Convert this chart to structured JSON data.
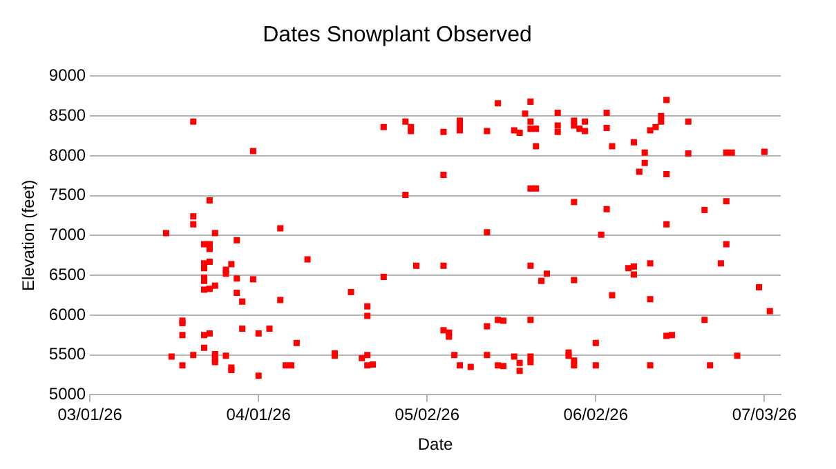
{
  "chart_data": {
    "type": "scatter",
    "title": "Dates Snowplant Observed",
    "xlabel": "Date",
    "ylabel": "Elevation (feet)",
    "xlim": [
      "2026-03-01",
      "2026-07-06"
    ],
    "xticks": [
      {
        "value": "2026-03-01",
        "label": "03/01/26"
      },
      {
        "value": "2026-04-01",
        "label": "04/01/26"
      },
      {
        "value": "2026-05-02",
        "label": "05/02/26"
      },
      {
        "value": "2026-06-02",
        "label": "06/02/26"
      },
      {
        "value": "2026-07-03",
        "label": "07/03/26"
      }
    ],
    "ylim": [
      5000,
      9000
    ],
    "yticks": [
      5000,
      5500,
      6000,
      6500,
      7000,
      7500,
      8000,
      8500,
      9000
    ],
    "grid": "y",
    "legend": false,
    "marker": "square",
    "series": [
      {
        "color": "#ff0000",
        "x": [
          "2026-03-20",
          "2026-03-31",
          "2026-03-23",
          "2026-03-20",
          "2026-03-20",
          "2026-03-15",
          "2026-03-24",
          "2026-03-28",
          "2026-03-22",
          "2026-03-23",
          "2026-03-23",
          "2026-03-22",
          "2026-03-23",
          "2026-03-22",
          "2026-03-27",
          "2026-03-26",
          "2026-03-26",
          "2026-03-22",
          "2026-03-22",
          "2026-03-28",
          "2026-03-31",
          "2026-03-24",
          "2026-03-23",
          "2026-03-22",
          "2026-03-28",
          "2026-03-29",
          "2026-03-18",
          "2026-03-18",
          "2026-03-29",
          "2026-04-01",
          "2026-04-03",
          "2026-03-18",
          "2026-03-22",
          "2026-03-23",
          "2026-03-22",
          "2026-03-16",
          "2026-03-20",
          "2026-03-24",
          "2026-03-24",
          "2026-03-24",
          "2026-03-26",
          "2026-03-18",
          "2026-03-27",
          "2026-03-27",
          "2026-04-01",
          "2026-04-24",
          "2026-04-28",
          "2026-04-29",
          "2026-04-29",
          "2026-05-05",
          "2026-05-05",
          "2026-04-28",
          "2026-04-05",
          "2026-04-10",
          "2026-04-30",
          "2026-05-05",
          "2026-04-24",
          "2026-04-18",
          "2026-04-05",
          "2026-04-21",
          "2026-04-21",
          "2026-05-05",
          "2026-05-06",
          "2026-05-06",
          "2026-04-08",
          "2026-04-15",
          "2026-04-15",
          "2026-04-21",
          "2026-04-20",
          "2026-05-07",
          "2026-04-06",
          "2026-04-07",
          "2026-04-21",
          "2026-04-22",
          "2026-05-15",
          "2026-05-21",
          "2026-05-20",
          "2026-05-26",
          "2026-06-04",
          "2026-05-08",
          "2026-05-08",
          "2026-05-08",
          "2026-05-13",
          "2026-05-18",
          "2026-05-19",
          "2026-05-21",
          "2026-05-21",
          "2026-05-22",
          "2026-05-26",
          "2026-05-26",
          "2026-05-29",
          "2026-05-29",
          "2026-05-30",
          "2026-05-31",
          "2026-05-31",
          "2026-06-04",
          "2026-06-05",
          "2026-05-22",
          "2026-05-21",
          "2026-05-22",
          "2026-05-29",
          "2026-06-04",
          "2026-05-13",
          "2026-06-03",
          "2026-05-21",
          "2026-05-24",
          "2026-05-23",
          "2026-05-29",
          "2026-06-05",
          "2026-05-15",
          "2026-05-16",
          "2026-05-13",
          "2026-05-21",
          "2026-06-02",
          "2026-05-13",
          "2026-05-18",
          "2026-05-19",
          "2026-05-19",
          "2026-05-21",
          "2026-05-21",
          "2026-05-28",
          "2026-05-28",
          "2026-05-29",
          "2026-05-29",
          "2026-05-08",
          "2026-05-10",
          "2026-05-15",
          "2026-05-16",
          "2026-06-02",
          "2026-06-15",
          "2026-06-14",
          "2026-06-14",
          "2026-06-19",
          "2026-06-13",
          "2026-06-12",
          "2026-06-09",
          "2026-06-11",
          "2026-06-11",
          "2026-06-19",
          "2026-06-26",
          "2026-06-27",
          "2026-07-03",
          "2026-06-10",
          "2026-06-15",
          "2026-06-26",
          "2026-06-22",
          "2026-06-15",
          "2026-06-26",
          "2026-06-08",
          "2026-06-09",
          "2026-06-09",
          "2026-06-12",
          "2026-06-25",
          "2026-06-12",
          "2026-07-02",
          "2026-07-04",
          "2026-06-22",
          "2026-06-15",
          "2026-06-16",
          "2026-06-28",
          "2026-06-12",
          "2026-06-23"
        ],
        "values": [
          8430,
          8060,
          7440,
          7240,
          7140,
          7030,
          7030,
          6940,
          6890,
          6890,
          6830,
          6650,
          6670,
          6590,
          6640,
          6570,
          6520,
          6470,
          6430,
          6460,
          6450,
          6370,
          6330,
          6320,
          6280,
          6170,
          5930,
          5900,
          5830,
          5770,
          5830,
          5750,
          5750,
          5770,
          5590,
          5480,
          5500,
          5510,
          5450,
          5410,
          5490,
          5370,
          5340,
          5310,
          5240,
          8360,
          8430,
          8360,
          8310,
          8300,
          7760,
          7510,
          7090,
          6700,
          6620,
          6620,
          6480,
          6290,
          6190,
          6110,
          5990,
          5810,
          5780,
          5730,
          5650,
          5520,
          5490,
          5500,
          5460,
          5500,
          5370,
          5370,
          5370,
          5380,
          8660,
          8680,
          8530,
          8540,
          8540,
          8440,
          8380,
          8320,
          8310,
          8320,
          8290,
          8430,
          8340,
          8340,
          8380,
          8300,
          8440,
          8380,
          8340,
          8430,
          8310,
          8350,
          8120,
          8120,
          7590,
          7590,
          7420,
          7330,
          7040,
          7010,
          6620,
          6520,
          6430,
          6440,
          6250,
          5940,
          5930,
          5860,
          5940,
          5650,
          5500,
          5480,
          5400,
          5300,
          5480,
          5410,
          5530,
          5490,
          5430,
          5370,
          5370,
          5350,
          5370,
          5360,
          5370,
          8700,
          8500,
          8430,
          8430,
          8360,
          8320,
          8170,
          8040,
          7910,
          8030,
          8040,
          8040,
          8050,
          7800,
          7770,
          7430,
          7320,
          7140,
          6890,
          6590,
          6610,
          6510,
          6650,
          6650,
          6200,
          6350,
          6050,
          5940,
          5740,
          5750,
          5490,
          5370,
          5370
        ]
      }
    ]
  }
}
